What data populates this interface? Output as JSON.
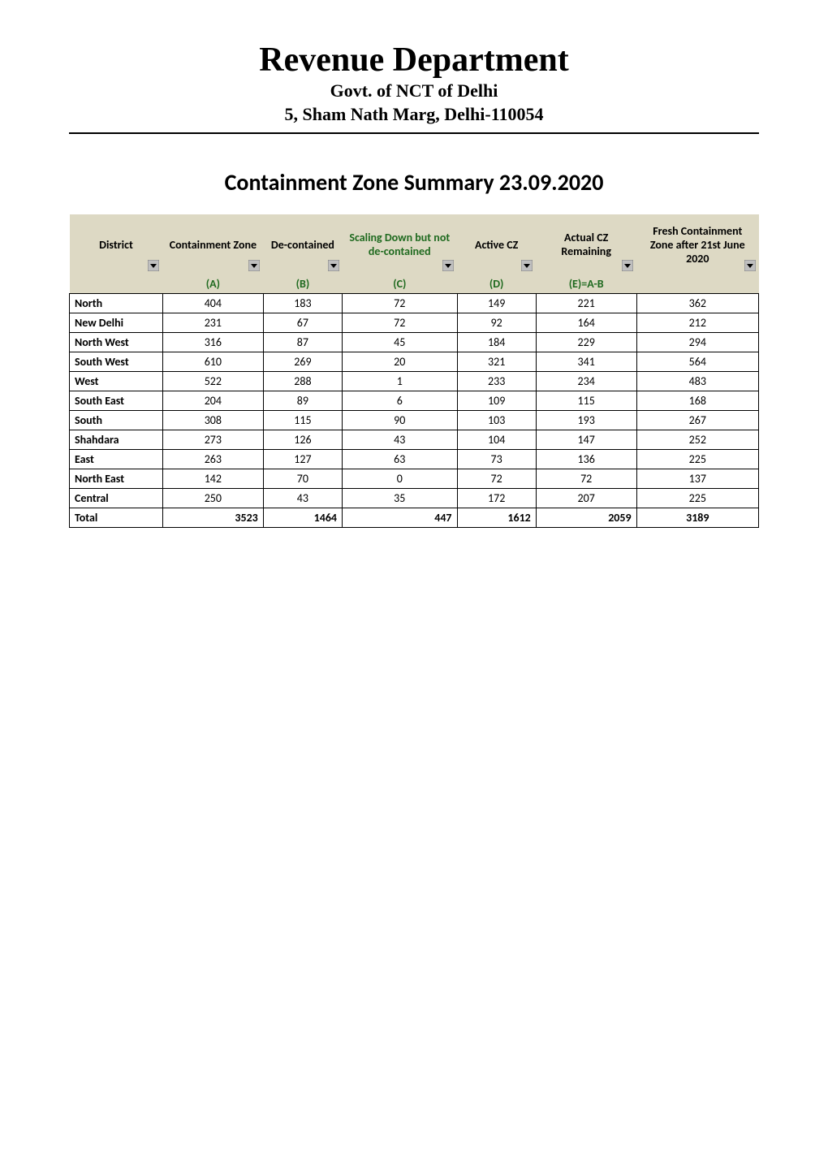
{
  "header": {
    "title": "Revenue Department",
    "subtitle1": "Govt. of NCT of Delhi",
    "subtitle2": "5, Sham Nath Marg, Delhi-110054"
  },
  "summary_title": "Containment Zone Summary 23.09.2020",
  "table": {
    "header_bg": "#ddd9c4",
    "border_color": "#000000",
    "green_text": "#1f6a1f",
    "columns": [
      {
        "label": "District",
        "letter": "",
        "width": "13%"
      },
      {
        "label": "Containment Zone",
        "letter": "(A)",
        "width": "14%"
      },
      {
        "label": "De-contained",
        "letter": "(B)",
        "width": "11%"
      },
      {
        "label": "Scaling Down but not de-contained",
        "letter": "(C)",
        "width": "16%",
        "green": true
      },
      {
        "label": "Active CZ",
        "letter": "(D)",
        "width": "11%"
      },
      {
        "label": "Actual CZ Remaining",
        "letter": "(E)=A-B",
        "width": "14%"
      },
      {
        "label": "Fresh Containment Zone after 21st June 2020",
        "letter": "",
        "width": "17%"
      }
    ],
    "rows": [
      {
        "district": "North",
        "a": 404,
        "b": 183,
        "c": 72,
        "d": 149,
        "e": 221,
        "f": 362
      },
      {
        "district": "New Delhi",
        "a": 231,
        "b": 67,
        "c": 72,
        "d": 92,
        "e": 164,
        "f": 212
      },
      {
        "district": "North West",
        "a": 316,
        "b": 87,
        "c": 45,
        "d": 184,
        "e": 229,
        "f": 294
      },
      {
        "district": "South West",
        "a": 610,
        "b": 269,
        "c": 20,
        "d": 321,
        "e": 341,
        "f": 564
      },
      {
        "district": "West",
        "a": 522,
        "b": 288,
        "c": 1,
        "d": 233,
        "e": 234,
        "f": 483
      },
      {
        "district": "South East",
        "a": 204,
        "b": 89,
        "c": 6,
        "d": 109,
        "e": 115,
        "f": 168
      },
      {
        "district": "South",
        "a": 308,
        "b": 115,
        "c": 90,
        "d": 103,
        "e": 193,
        "f": 267
      },
      {
        "district": "Shahdara",
        "a": 273,
        "b": 126,
        "c": 43,
        "d": 104,
        "e": 147,
        "f": 252
      },
      {
        "district": "East",
        "a": 263,
        "b": 127,
        "c": 63,
        "d": 73,
        "e": 136,
        "f": 225
      },
      {
        "district": "North East",
        "a": 142,
        "b": 70,
        "c": 0,
        "d": 72,
        "e": 72,
        "f": 137
      },
      {
        "district": "Central",
        "a": 250,
        "b": 43,
        "c": 35,
        "d": 172,
        "e": 207,
        "f": 225
      }
    ],
    "total": {
      "district": "Total",
      "a": 3523,
      "b": 1464,
      "c": 447,
      "d": 1612,
      "e": 2059,
      "f": 3189
    }
  }
}
